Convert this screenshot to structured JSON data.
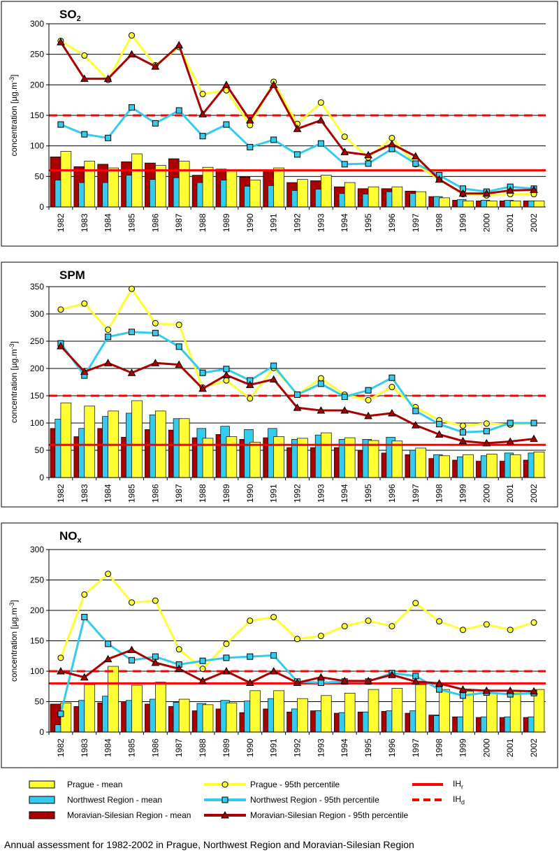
{
  "chart_data": [
    {
      "type": "bar",
      "title": "SO",
      "title_sub": "2",
      "ylabel": "concentration  [µg.m-3]",
      "ylim": [
        0,
        300
      ],
      "yticks": [
        0,
        50,
        100,
        150,
        200,
        250,
        300
      ],
      "grid": true,
      "categories": [
        "1982",
        "1983",
        "1984",
        "1985",
        "1986",
        "1987",
        "1988",
        "1989",
        "1990",
        "1991",
        "1992",
        "1993",
        "1994",
        "1995",
        "1996",
        "1997",
        "1998",
        "1999",
        "2000",
        "2001",
        "2002"
      ],
      "series": [
        {
          "name": "Moravian-Silesian Region - mean",
          "kind": "bar",
          "values": [
            82,
            66,
            70,
            74,
            72,
            79,
            52,
            62,
            49,
            60,
            40,
            43,
            33,
            30,
            30,
            26,
            17,
            11,
            10,
            10,
            10
          ]
        },
        {
          "name": "Northwest Region - mean",
          "kind": "bar",
          "values": [
            44,
            40,
            40,
            52,
            45,
            48,
            40,
            44,
            34,
            35,
            27,
            29,
            22,
            21,
            25,
            22,
            17,
            12,
            11,
            11,
            10
          ]
        },
        {
          "name": "Prague - mean",
          "kind": "bar",
          "values": [
            91,
            75,
            64,
            87,
            68,
            75,
            65,
            59,
            44,
            64,
            45,
            52,
            40,
            33,
            33,
            25,
            15,
            10,
            10,
            10,
            10
          ]
        },
        {
          "name": "Prague - 95th percentile",
          "kind": "line",
          "values": [
            272,
            248,
            208,
            281,
            232,
            262,
            185,
            191,
            134,
            205,
            136,
            171,
            115,
            81,
            113,
            70,
            45,
            21,
            19,
            21,
            21
          ]
        },
        {
          "name": "Northwest Region - 95th percentile",
          "kind": "line",
          "values": [
            135,
            119,
            113,
            163,
            137,
            158,
            116,
            135,
            98,
            110,
            86,
            104,
            70,
            71,
            95,
            71,
            52,
            30,
            25,
            33,
            30
          ]
        },
        {
          "name": "Moravian-Silesian Region - 95th percentile",
          "kind": "line",
          "values": [
            270,
            210,
            210,
            250,
            230,
            265,
            152,
            200,
            142,
            200,
            128,
            142,
            90,
            85,
            103,
            83,
            45,
            22,
            22,
            27,
            28
          ]
        }
      ],
      "references": [
        {
          "name": "IHr",
          "value": 60,
          "style": "solid"
        },
        {
          "name": "IHd",
          "value": 150,
          "style": "dashed"
        }
      ]
    },
    {
      "type": "bar",
      "title": "SPM",
      "title_sub": "",
      "ylabel": "concentration  [µg.m-3]",
      "ylim": [
        0,
        350
      ],
      "yticks": [
        0,
        50,
        100,
        150,
        200,
        250,
        300,
        350
      ],
      "grid": true,
      "categories": [
        "1982",
        "1983",
        "1984",
        "1985",
        "1986",
        "1987",
        "1988",
        "1989",
        "1990",
        "1991",
        "1992",
        "1993",
        "1994",
        "1995",
        "1996",
        "1997",
        "1998",
        "1999",
        "2000",
        "2001",
        "2002"
      ],
      "series": [
        {
          "name": "Moravian-Silesian Region - mean",
          "kind": "bar",
          "values": [
            90,
            75,
            90,
            74,
            88,
            87,
            73,
            79,
            70,
            73,
            55,
            55,
            55,
            50,
            45,
            42,
            35,
            32,
            30,
            30,
            32
          ]
        },
        {
          "name": "Northwest Region - mean",
          "kind": "bar",
          "values": [
            107,
            90,
            112,
            118,
            115,
            108,
            90,
            94,
            88,
            90,
            70,
            78,
            70,
            70,
            74,
            50,
            42,
            38,
            40,
            45,
            45
          ]
        },
        {
          "name": "Prague - mean",
          "kind": "bar",
          "values": [
            137,
            131,
            122,
            141,
            122,
            108,
            72,
            75,
            65,
            75,
            72,
            82,
            73,
            68,
            67,
            54,
            40,
            42,
            43,
            42,
            47
          ]
        },
        {
          "name": "Prague - 95th percentile",
          "kind": "line",
          "values": [
            308,
            319,
            271,
            346,
            283,
            280,
            165,
            178,
            145,
            201,
            152,
            182,
            152,
            142,
            166,
            129,
            105,
            95,
            99,
            97,
            100
          ]
        },
        {
          "name": "Northwest Region - 95th percentile",
          "kind": "line",
          "values": [
            246,
            187,
            258,
            267,
            265,
            240,
            192,
            199,
            178,
            205,
            152,
            172,
            148,
            160,
            183,
            122,
            98,
            83,
            85,
            100,
            100
          ]
        },
        {
          "name": "Moravian-Silesian Region - 95th percentile",
          "kind": "line",
          "values": [
            241,
            194,
            210,
            192,
            210,
            207,
            163,
            188,
            170,
            180,
            128,
            123,
            123,
            113,
            118,
            96,
            79,
            67,
            63,
            66,
            71
          ]
        }
      ],
      "references": [
        {
          "name": "IHr",
          "value": 60,
          "style": "solid"
        },
        {
          "name": "IHd",
          "value": 150,
          "style": "dashed"
        }
      ]
    },
    {
      "type": "bar",
      "title": "NO",
      "title_sub": "x",
      "ylabel": "concentration  [µg.m-3]",
      "ylim": [
        0,
        300
      ],
      "yticks": [
        0,
        50,
        100,
        150,
        200,
        250,
        300
      ],
      "grid": true,
      "categories": [
        "1982",
        "1983",
        "1984",
        "1985",
        "1986",
        "1987",
        "1988",
        "1989",
        "1990",
        "1991",
        "1992",
        "1993",
        "1994",
        "1995",
        "1996",
        "1997",
        "1998",
        "1999",
        "2000",
        "2001",
        "2002"
      ],
      "series": [
        {
          "name": "Moravian-Silesian Region - mean",
          "kind": "bar",
          "values": [
            46,
            42,
            48,
            50,
            46,
            42,
            35,
            38,
            32,
            38,
            33,
            35,
            31,
            33,
            34,
            31,
            28,
            25,
            24,
            24,
            24
          ]
        },
        {
          "name": "Northwest Region - mean",
          "kind": "bar",
          "values": [
            12,
            52,
            59,
            52,
            54,
            49,
            47,
            52,
            51,
            55,
            38,
            35,
            32,
            33,
            35,
            35,
            27,
            25,
            25,
            25,
            25
          ]
        },
        {
          "name": "Prague - mean",
          "kind": "bar",
          "values": [
            48,
            78,
            108,
            77,
            82,
            54,
            45,
            48,
            68,
            68,
            55,
            60,
            64,
            70,
            72,
            78,
            70,
            67,
            65,
            68,
            70
          ]
        },
        {
          "name": "Prague - 95th percentile",
          "kind": "line",
          "values": [
            122,
            226,
            260,
            213,
            216,
            136,
            104,
            145,
            183,
            189,
            153,
            158,
            174,
            183,
            174,
            212,
            182,
            168,
            177,
            168,
            180
          ]
        },
        {
          "name": "Northwest Region - 95th percentile",
          "kind": "line",
          "values": [
            30,
            189,
            145,
            118,
            124,
            111,
            117,
            122,
            124,
            126,
            83,
            81,
            83,
            83,
            97,
            92,
            70,
            60,
            65,
            62,
            64
          ]
        },
        {
          "name": "Moravian-Silesian Region - 95th percentile",
          "kind": "line",
          "values": [
            100,
            90,
            120,
            135,
            114,
            104,
            84,
            100,
            81,
            100,
            81,
            90,
            84,
            84,
            94,
            83,
            80,
            70,
            68,
            68,
            67
          ]
        }
      ],
      "references": [
        {
          "name": "IHr",
          "value": 80,
          "style": "solid"
        },
        {
          "name": "IHd",
          "value": 100,
          "style": "dashed"
        }
      ]
    }
  ],
  "colors": {
    "prague": "#ffff33",
    "northwest": "#33ccee",
    "moravian": "#aa0000",
    "limit": "#ff0000",
    "grid": "#000000"
  },
  "legend": {
    "prague_mean": "Prague - mean",
    "prague_p95": "Prague - 95th percentile",
    "ihr": "IH",
    "ihr_sub": "r",
    "northwest_mean": "Northwest Region - mean",
    "northwest_p95": "Northwest Region - 95th percentile",
    "ihd": "IH",
    "ihd_sub": "d",
    "moravian_mean": "Moravian-Silesian Region - mean",
    "moravian_p95": "Moravian-Silesian Region - 95th percentile"
  },
  "caption": "Annual assessment for 1982-2002 in Prague, Northwest Region and Moravian-Silesian Region"
}
